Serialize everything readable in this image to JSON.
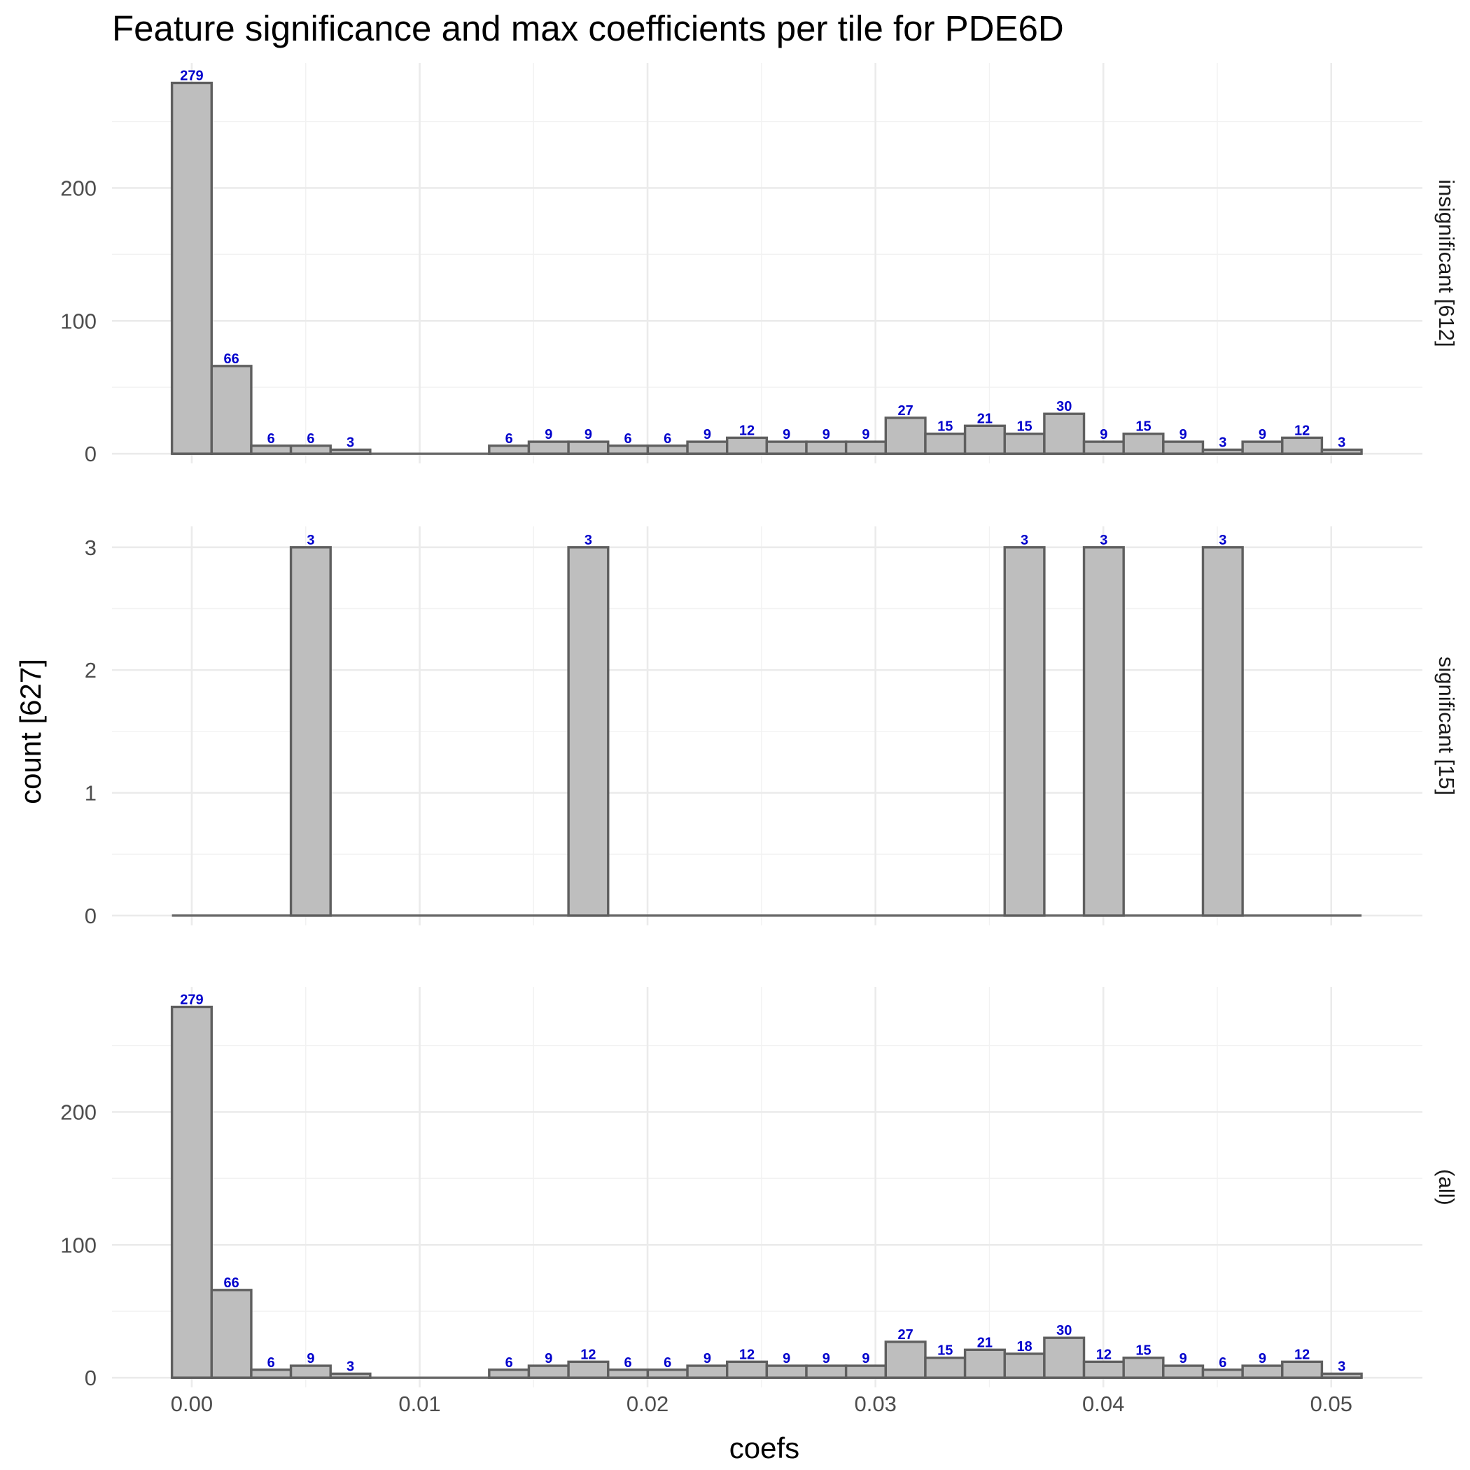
{
  "chart_data": {
    "type": "bar",
    "title": "Feature significance and max coefficients per tile for PDE6D",
    "xlabel": "coefs",
    "ylabel": "count [627]",
    "bin_width": 0.00174,
    "first_bin_center": 0,
    "xlim": [
      -0.0035,
      0.054
    ],
    "x_ticks": [
      0,
      0.01,
      0.02,
      0.03,
      0.04,
      0.05
    ],
    "x_tick_labels": [
      "0.00",
      "0.01",
      "0.02",
      "0.03",
      "0.04",
      "0.05"
    ],
    "label_color": "#0000cc",
    "bar_fill": "#bebebe",
    "bar_outline": "#5f5f5f",
    "grid": true,
    "panels": [
      {
        "strip": "insignificant [612]",
        "ylim": [
          -7.3,
          294
        ],
        "y_ticks": [
          0,
          100,
          200
        ],
        "y_tick_labels": [
          "0",
          "100",
          "200"
        ],
        "values": [
          279,
          66,
          6,
          6,
          3,
          0,
          0,
          0,
          6,
          9,
          9,
          6,
          6,
          9,
          12,
          9,
          9,
          9,
          27,
          15,
          21,
          15,
          30,
          9,
          15,
          9,
          3,
          9,
          12,
          3
        ]
      },
      {
        "strip": "significant [15]",
        "ylim": [
          -0.08,
          3.17
        ],
        "y_ticks": [
          0,
          1,
          2,
          3
        ],
        "y_tick_labels": [
          "0",
          "1",
          "2",
          "3"
        ],
        "values": [
          0,
          0,
          0,
          3,
          0,
          0,
          0,
          0,
          0,
          0,
          3,
          0,
          0,
          0,
          0,
          0,
          0,
          0,
          0,
          0,
          0,
          3,
          0,
          3,
          0,
          0,
          3,
          0,
          0,
          0
        ]
      },
      {
        "strip": "(all)",
        "ylim": [
          -7.3,
          294
        ],
        "y_ticks": [
          0,
          100,
          200
        ],
        "y_tick_labels": [
          "0",
          "100",
          "200"
        ],
        "values": [
          279,
          66,
          6,
          9,
          3,
          0,
          0,
          0,
          6,
          9,
          12,
          6,
          6,
          9,
          12,
          9,
          9,
          9,
          27,
          15,
          21,
          18,
          30,
          12,
          15,
          9,
          6,
          9,
          12,
          3
        ]
      }
    ]
  }
}
